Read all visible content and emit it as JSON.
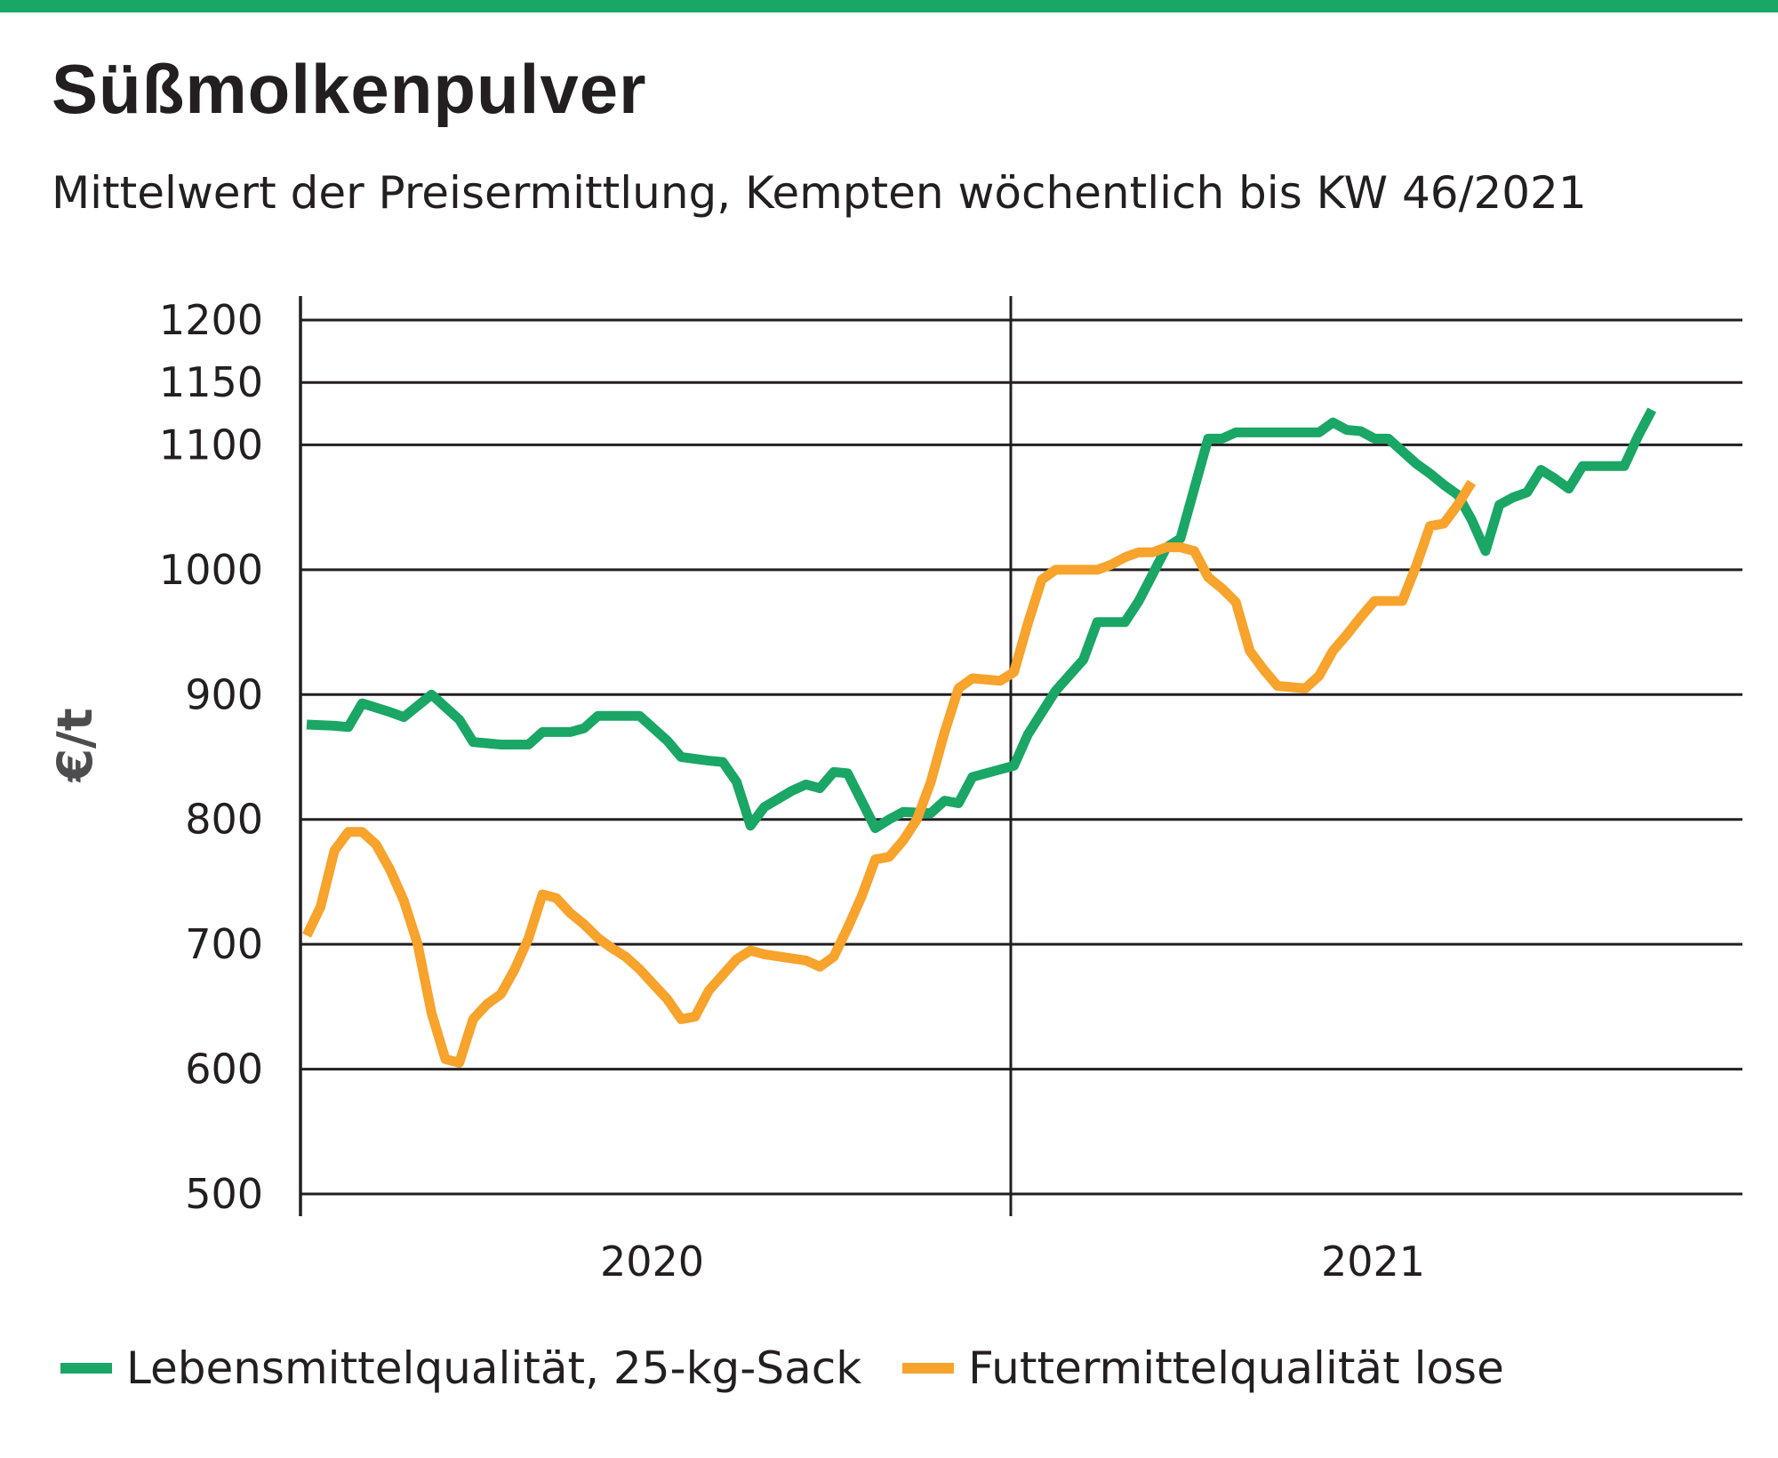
{
  "title": "Süßmolkenpulver",
  "subtitle": "Mittelwert der Preisermittlung, Kempten wöchentlich bis KW 46/2021",
  "colors": {
    "accent_bar": "#1aa665",
    "series_food": "#1aa665",
    "series_feed": "#f7a32c",
    "grid": "#231f20"
  },
  "chart_data": {
    "type": "line",
    "title": "Süßmolkenpulver",
    "subtitle": "Mittelwert der Preisermittlung, Kempten wöchentlich bis KW 46/2021",
    "ylabel": "€/t",
    "xlabel": "",
    "ylim": [
      500,
      1200
    ],
    "yticks": [
      "500",
      "600",
      "700",
      "800",
      "900",
      "1000",
      "1100",
      "1150",
      "1200"
    ],
    "ytick_values": [
      500,
      600,
      700,
      800,
      900,
      1000,
      1100,
      1150,
      1200
    ],
    "xticks": [
      "2020",
      "2021"
    ],
    "x_unit": "Kalenderwoche",
    "year_weeks": 52,
    "grid": true,
    "legend_position": "bottom",
    "series": [
      {
        "name": "Lebensmittelqualität, 25-kg-Sack",
        "color": "#1aa665",
        "points": [
          [
            1,
            876
          ],
          [
            3,
            875
          ],
          [
            4,
            874
          ],
          [
            5,
            893
          ],
          [
            7,
            886
          ],
          [
            8,
            882
          ],
          [
            10,
            900
          ],
          [
            12,
            880
          ],
          [
            13,
            862
          ],
          [
            15,
            860
          ],
          [
            17,
            860
          ],
          [
            18,
            870
          ],
          [
            20,
            870
          ],
          [
            21,
            873
          ],
          [
            22,
            883
          ],
          [
            25,
            883
          ],
          [
            27,
            863
          ],
          [
            28,
            850
          ],
          [
            30,
            847
          ],
          [
            31,
            846
          ],
          [
            32,
            830
          ],
          [
            33,
            795
          ],
          [
            34,
            810
          ],
          [
            36,
            823
          ],
          [
            37,
            828
          ],
          [
            38,
            825
          ],
          [
            39,
            838
          ],
          [
            40,
            837
          ],
          [
            42,
            793
          ],
          [
            43,
            800
          ],
          [
            44,
            806
          ],
          [
            46,
            805
          ],
          [
            47,
            815
          ],
          [
            48,
            813
          ],
          [
            49,
            834
          ],
          [
            51,
            840
          ],
          [
            52,
            843
          ],
          [
            53,
            868
          ],
          [
            55,
            903
          ],
          [
            57,
            928
          ],
          [
            58,
            958
          ],
          [
            59,
            958
          ],
          [
            60,
            958
          ],
          [
            61,
            975
          ],
          [
            63,
            1018
          ],
          [
            64,
            1025
          ],
          [
            66,
            1105
          ],
          [
            67,
            1105
          ],
          [
            68,
            1110
          ],
          [
            74,
            1110
          ],
          [
            75,
            1118
          ],
          [
            76,
            1112
          ],
          [
            77,
            1111
          ],
          [
            78,
            1105
          ],
          [
            79,
            1105
          ],
          [
            80,
            1095
          ],
          [
            81,
            1085
          ],
          [
            82,
            1077
          ],
          [
            83,
            1068
          ],
          [
            84,
            1060
          ],
          [
            85,
            1040
          ],
          [
            86,
            1015
          ],
          [
            87,
            1052
          ],
          [
            88,
            1058
          ],
          [
            89,
            1062
          ],
          [
            90,
            1080
          ],
          [
            91,
            1073
          ],
          [
            92,
            1065
          ],
          [
            93,
            1083
          ],
          [
            96,
            1083
          ],
          [
            97,
            1107
          ],
          [
            98,
            1128
          ]
        ]
      },
      {
        "name": "Futtermittelqualität lose",
        "color": "#f7a32c",
        "points": [
          [
            1,
            707
          ],
          [
            2,
            730
          ],
          [
            3,
            775
          ],
          [
            4,
            790
          ],
          [
            5,
            790
          ],
          [
            6,
            780
          ],
          [
            7,
            760
          ],
          [
            8,
            735
          ],
          [
            9,
            700
          ],
          [
            10,
            645
          ],
          [
            11,
            608
          ],
          [
            12,
            605
          ],
          [
            13,
            640
          ],
          [
            14,
            652
          ],
          [
            15,
            660
          ],
          [
            16,
            680
          ],
          [
            17,
            705
          ],
          [
            18,
            740
          ],
          [
            19,
            737
          ],
          [
            20,
            725
          ],
          [
            21,
            716
          ],
          [
            22,
            705
          ],
          [
            23,
            697
          ],
          [
            24,
            690
          ],
          [
            25,
            680
          ],
          [
            26,
            668
          ],
          [
            27,
            656
          ],
          [
            28,
            640
          ],
          [
            29,
            642
          ],
          [
            30,
            663
          ],
          [
            32,
            688
          ],
          [
            33,
            695
          ],
          [
            34,
            692
          ],
          [
            37,
            687
          ],
          [
            38,
            682
          ],
          [
            39,
            690
          ],
          [
            40,
            713
          ],
          [
            41,
            738
          ],
          [
            42,
            768
          ],
          [
            43,
            770
          ],
          [
            44,
            783
          ],
          [
            45,
            800
          ],
          [
            46,
            830
          ],
          [
            47,
            870
          ],
          [
            48,
            905
          ],
          [
            49,
            913
          ],
          [
            50,
            912
          ],
          [
            51,
            911
          ],
          [
            52,
            918
          ],
          [
            53,
            957
          ],
          [
            54,
            992
          ],
          [
            55,
            1000
          ],
          [
            57,
            1000
          ],
          [
            58,
            1000
          ],
          [
            59,
            1004
          ],
          [
            60,
            1010
          ],
          [
            61,
            1014
          ],
          [
            62,
            1014
          ],
          [
            63,
            1018
          ],
          [
            64,
            1018
          ],
          [
            65,
            1015
          ],
          [
            66,
            994
          ],
          [
            67,
            985
          ],
          [
            68,
            974
          ],
          [
            69,
            935
          ],
          [
            70,
            920
          ],
          [
            71,
            907
          ],
          [
            72,
            906
          ],
          [
            73,
            905
          ],
          [
            74,
            915
          ],
          [
            75,
            935
          ],
          [
            76,
            948
          ],
          [
            77,
            962
          ],
          [
            78,
            975
          ],
          [
            79,
            975
          ],
          [
            80,
            975
          ],
          [
            81,
            1003
          ],
          [
            82,
            1035
          ],
          [
            83,
            1037
          ],
          [
            84,
            1052
          ],
          [
            85,
            1070
          ]
        ]
      }
    ]
  }
}
